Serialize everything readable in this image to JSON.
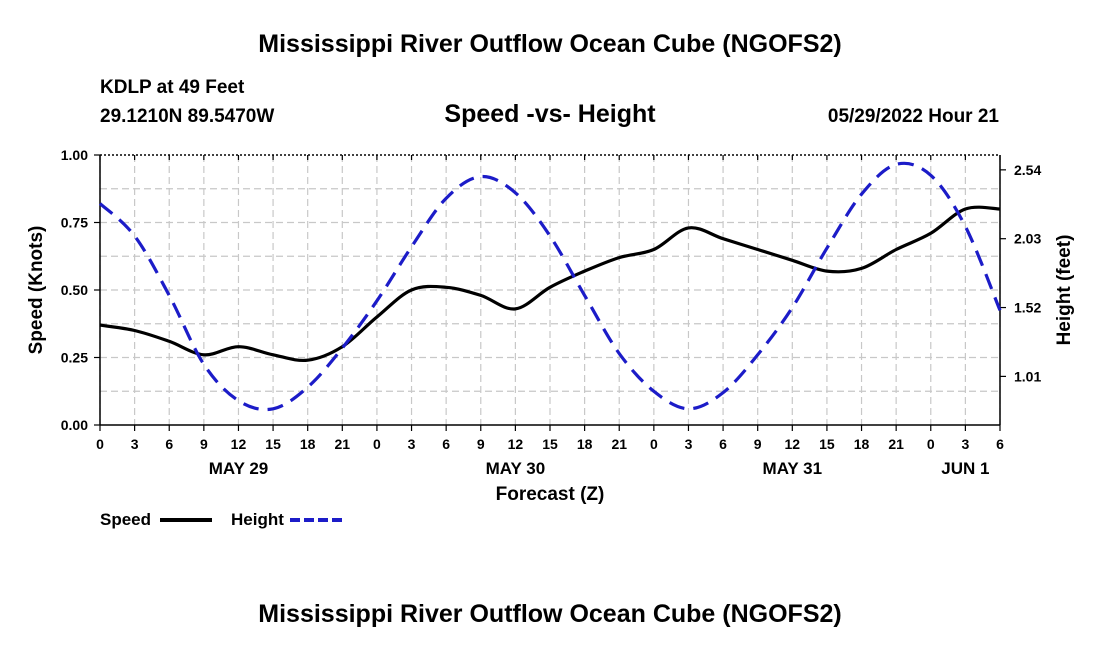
{
  "header": {
    "main_title": "Mississippi River Outflow Ocean Cube (NGOFS2)",
    "station": "KDLP at 49 Feet",
    "coords": "29.1210N  89.5470W",
    "plot_title": "Speed -vs- Height",
    "datetime": "05/29/2022 Hour 21"
  },
  "footer": {
    "title": "Mississippi River Outflow Ocean Cube (NGOFS2)"
  },
  "chart_data": {
    "type": "line",
    "title": "Speed -vs- Height",
    "xlabel": "Forecast (Z)",
    "ylabel": "Speed (Knots)",
    "y2label": "Height (feet)",
    "x_unit": "hours since May 29 00Z",
    "xlim": [
      0,
      78
    ],
    "ylim": [
      0,
      1
    ],
    "y2lim": [
      0.65,
      2.65
    ],
    "grid": true,
    "x_tick_labels": [
      "0",
      "3",
      "6",
      "9",
      "12",
      "15",
      "18",
      "21",
      "0",
      "3",
      "6",
      "9",
      "12",
      "15",
      "18",
      "21",
      "0",
      "3",
      "6",
      "9",
      "12",
      "15",
      "18",
      "21",
      "0",
      "3",
      "6"
    ],
    "x_day_labels": [
      {
        "label": "MAY 29",
        "hour": 12
      },
      {
        "label": "MAY 30",
        "hour": 36
      },
      {
        "label": "MAY 31",
        "hour": 60
      },
      {
        "label": "JUN 1",
        "hour": 75
      }
    ],
    "y_tick_labels": [
      "0.00",
      "0.25",
      "0.50",
      "0.75",
      "1.00"
    ],
    "y_ticks": [
      0,
      0.25,
      0.5,
      0.75,
      1.0
    ],
    "y2_ticks": [
      1.01,
      1.52,
      2.03,
      2.54
    ],
    "y2_tick_labels": [
      "1.01",
      "1.52",
      "2.03",
      "2.54"
    ],
    "series": [
      {
        "name": "Speed",
        "axis": "left",
        "color": "#000000",
        "dash": "solid",
        "x": [
          0,
          3,
          6,
          9,
          12,
          15,
          18,
          21,
          24,
          27,
          30,
          33,
          36,
          39,
          42,
          45,
          48,
          51,
          54,
          57,
          60,
          63,
          66,
          69,
          72,
          75,
          78
        ],
        "y": [
          0.37,
          0.35,
          0.31,
          0.26,
          0.29,
          0.26,
          0.24,
          0.29,
          0.4,
          0.5,
          0.51,
          0.48,
          0.43,
          0.51,
          0.57,
          0.62,
          0.65,
          0.73,
          0.69,
          0.65,
          0.61,
          0.57,
          0.58,
          0.65,
          0.71,
          0.8,
          0.8
        ]
      },
      {
        "name": "Height",
        "axis": "right",
        "color": "#1c1cc8",
        "dash": "dashed",
        "x": [
          0,
          3,
          6,
          9,
          12,
          15,
          18,
          21,
          24,
          27,
          30,
          33,
          36,
          39,
          42,
          45,
          48,
          51,
          54,
          57,
          60,
          63,
          66,
          69,
          72,
          75,
          78
        ],
        "y": [
          2.29,
          2.05,
          1.61,
          1.1,
          0.83,
          0.77,
          0.93,
          1.22,
          1.57,
          1.97,
          2.33,
          2.49,
          2.37,
          2.05,
          1.61,
          1.18,
          0.9,
          0.77,
          0.89,
          1.17,
          1.52,
          1.96,
          2.36,
          2.58,
          2.5,
          2.12,
          1.5
        ]
      }
    ],
    "legend": [
      {
        "label": "Speed",
        "color": "#000000",
        "dash": "solid"
      },
      {
        "label": "Height",
        "color": "#1c1cc8",
        "dash": "dashed"
      }
    ]
  }
}
